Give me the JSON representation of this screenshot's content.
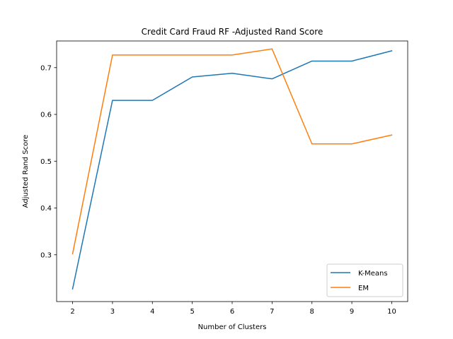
{
  "chart_data": {
    "type": "line",
    "title": "Credit Card Fraud RF -Adjusted Rand Score",
    "xlabel": "Number of Clusters",
    "ylabel": "Adjusted Rand Score",
    "x": [
      2,
      3,
      4,
      5,
      6,
      7,
      8,
      9,
      10
    ],
    "xlim": [
      1.6,
      10.4
    ],
    "ylim": [
      0.2,
      0.757
    ],
    "xticks": [
      "2",
      "3",
      "4",
      "5",
      "6",
      "7",
      "8",
      "9",
      "10"
    ],
    "yticks": [
      "0.3",
      "0.4",
      "0.5",
      "0.6",
      "0.7"
    ],
    "grid": false,
    "legend_position": "lower-right",
    "series": [
      {
        "name": "K-Means",
        "color": "#1f77b4",
        "values": [
          0.227,
          0.63,
          0.63,
          0.68,
          0.688,
          0.676,
          0.714,
          0.714,
          0.736
        ]
      },
      {
        "name": "EM",
        "color": "#ff7f0e",
        "values": [
          0.302,
          0.727,
          0.727,
          0.727,
          0.727,
          0.74,
          0.537,
          0.537,
          0.556
        ]
      }
    ]
  }
}
